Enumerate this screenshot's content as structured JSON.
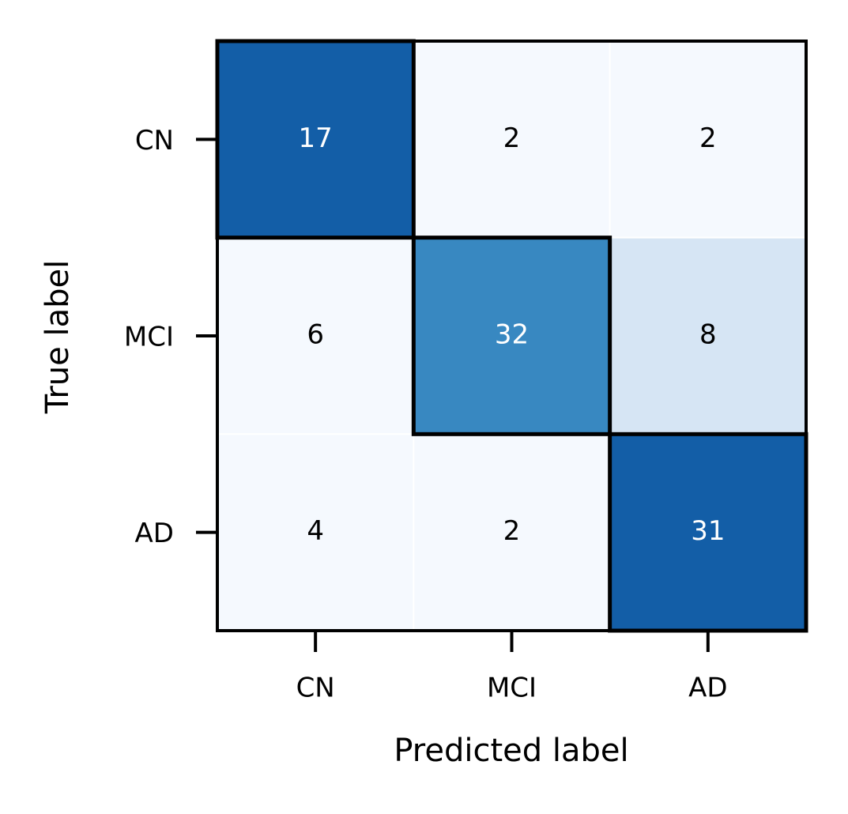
{
  "chart_data": {
    "type": "heatmap",
    "x_label": "Predicted label",
    "y_label": "True label",
    "x_categories": [
      "CN",
      "MCI",
      "AD"
    ],
    "y_categories": [
      "CN",
      "MCI",
      "AD"
    ],
    "values": [
      [
        17,
        2,
        2
      ],
      [
        6,
        32,
        8
      ],
      [
        4,
        2,
        31
      ]
    ],
    "colors": [
      [
        "#135ea7",
        "#f5f9fe",
        "#f5f9fe"
      ],
      [
        "#f5f9fe",
        "#3888c1",
        "#d6e5f4"
      ],
      [
        "#f5f9fe",
        "#f5f9fe",
        "#135ea7"
      ]
    ],
    "text_colors": [
      [
        "#ffffff",
        "#000000",
        "#000000"
      ],
      [
        "#000000",
        "#ffffff",
        "#000000"
      ],
      [
        "#000000",
        "#000000",
        "#ffffff"
      ]
    ],
    "highlight_diagonal": true
  }
}
